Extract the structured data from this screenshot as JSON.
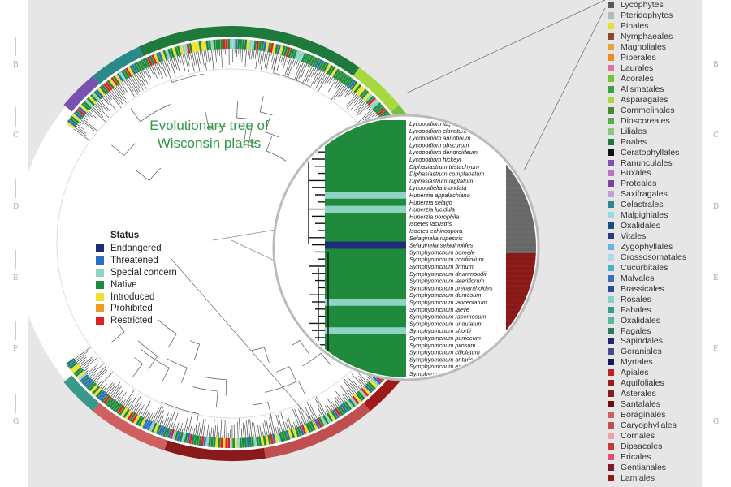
{
  "title_line1": "Evolutionary tree of",
  "title_line2": "Wisconsin plants",
  "grid_letters": [
    "B",
    "C",
    "D",
    "E",
    "F",
    "G"
  ],
  "status_legend": {
    "title": "Status",
    "items": [
      {
        "label": "Endangered",
        "color": "#1f2a7a"
      },
      {
        "label": "Threatened",
        "color": "#2b6cc4"
      },
      {
        "label": "Special concern",
        "color": "#8fd3c3"
      },
      {
        "label": "Native",
        "color": "#1f8a3c"
      },
      {
        "label": "Introduced",
        "color": "#f0e02a"
      },
      {
        "label": "Prohibited",
        "color": "#f09a1e"
      },
      {
        "label": "Restricted",
        "color": "#e02020"
      }
    ]
  },
  "order_legend": [
    {
      "label": "Lycophytes",
      "color": "#5a5a5a"
    },
    {
      "label": "Pteridophytes",
      "color": "#b8b8b8"
    },
    {
      "label": "Pinales",
      "color": "#e8e030"
    },
    {
      "label": "Nymphaeales",
      "color": "#8a4a2a"
    },
    {
      "label": "Magnoliales",
      "color": "#e8a040"
    },
    {
      "label": "Piperales",
      "color": "#f08a1e"
    },
    {
      "label": "Laurales",
      "color": "#e070a0"
    },
    {
      "label": "Acorales",
      "color": "#7ac040"
    },
    {
      "label": "Alismatales",
      "color": "#3aa040"
    },
    {
      "label": "Asparagales",
      "color": "#a8d840"
    },
    {
      "label": "Commelinales",
      "color": "#4a8a30"
    },
    {
      "label": "Dioscoreales",
      "color": "#5aaa50"
    },
    {
      "label": "Liliales",
      "color": "#8ac880"
    },
    {
      "label": "Poales",
      "color": "#1e7a3a"
    },
    {
      "label": "Ceratophyllales",
      "color": "#111111"
    },
    {
      "label": "Ranunculales",
      "color": "#7a50b0"
    },
    {
      "label": "Buxales",
      "color": "#c070c0"
    },
    {
      "label": "Proteales",
      "color": "#8040a0"
    },
    {
      "label": "Saxifragales",
      "color": "#c0a0d8"
    },
    {
      "label": "Celastrales",
      "color": "#2a8a8a"
    },
    {
      "label": "Malpighiales",
      "color": "#a0d8e0"
    },
    {
      "label": "Oxalidales",
      "color": "#1a4a8a"
    },
    {
      "label": "Vitales",
      "color": "#2a3a80"
    },
    {
      "label": "Zygophyllales",
      "color": "#6ab0e0"
    },
    {
      "label": "Crossosomatales",
      "color": "#b0d8f0"
    },
    {
      "label": "Cucurbitales",
      "color": "#4ab0c8"
    },
    {
      "label": "Malvales",
      "color": "#3a70c0"
    },
    {
      "label": "Brassicales",
      "color": "#2a4aa0"
    },
    {
      "label": "Rosales",
      "color": "#8ad0c8"
    },
    {
      "label": "Fabales",
      "color": "#3a9a8a"
    },
    {
      "label": "Oxalidales",
      "color": "#5ab89a"
    },
    {
      "label": "Fagales",
      "color": "#2a7a6a"
    },
    {
      "label": "Sapindales",
      "color": "#1a2a6a"
    },
    {
      "label": "Geraniales",
      "color": "#4a4a90"
    },
    {
      "label": "Myrtales",
      "color": "#1a1a5a"
    },
    {
      "label": "Apiales",
      "color": "#c02020"
    },
    {
      "label": "Aquifoliales",
      "color": "#a01a1a"
    },
    {
      "label": "Asterales",
      "color": "#8a1a1a"
    },
    {
      "label": "Santalales",
      "color": "#6a1010"
    },
    {
      "label": "Boraginales",
      "color": "#d06060"
    },
    {
      "label": "Caryophyllales",
      "color": "#c05050"
    },
    {
      "label": "Cornales",
      "color": "#f0a0a8"
    },
    {
      "label": "Dipsacales",
      "color": "#c83a3a"
    },
    {
      "label": "Ericales",
      "color": "#e84a7a"
    },
    {
      "label": "Gentianales",
      "color": "#7a1a2a"
    },
    {
      "label": "Lamiales",
      "color": "#901a1a"
    }
  ],
  "species": [
    "Lycopodium lagopus",
    "Lycopodium clavatum",
    "Lycopodium annotinum",
    "Lycopodium obscurum",
    "Lycopodium dendroideum",
    "Lycopodium hickeyi",
    "Diphasiastrum tristachyum",
    "Diphasiastrum complanatum",
    "Diphasiastrum digitatum",
    "Lycopodiella inundata",
    "Huperzia appalachiana",
    "Huperzia selago",
    "Huperzia lucidula",
    "Huperzia porophila",
    "Isoetes lacustris",
    "Isoetes echinospora",
    "Selaginella rupestris",
    "Selaginella selaginoides",
    "Symphyotrichum boreale",
    "Symphyotrichum cordifolium",
    "Symphyotrichum firmum",
    "Symphyotrichum drummondii",
    "Symphyotrichum lateriflorum",
    "Symphyotrichum prenanthoides",
    "Symphyotrichum dumosum",
    "Symphyotrichum lanceolatum",
    "Symphyotrichum laeve",
    "Symphyotrichum racemosum",
    "Symphyotrichum undulatum",
    "Symphyotrichum shortii",
    "Symphyotrichum puniceum",
    "Symphyotrichum pilosum",
    "Symphyotrichum ciliolatum",
    "Symphyotrichum ontarionis",
    "Symphyotrichum ericoides",
    "Symphyotrichum urophyllum"
  ],
  "species_status": [
    "n",
    "n",
    "n",
    "n",
    "n",
    "n",
    "n",
    "n",
    "n",
    "n",
    "s",
    "n",
    "s",
    "n",
    "n",
    "n",
    "n",
    "e",
    "n",
    "n",
    "n",
    "n",
    "n",
    "n",
    "n",
    "s",
    "n",
    "n",
    "n",
    "s",
    "n",
    "n",
    "n",
    "n",
    "n",
    "n"
  ]
}
